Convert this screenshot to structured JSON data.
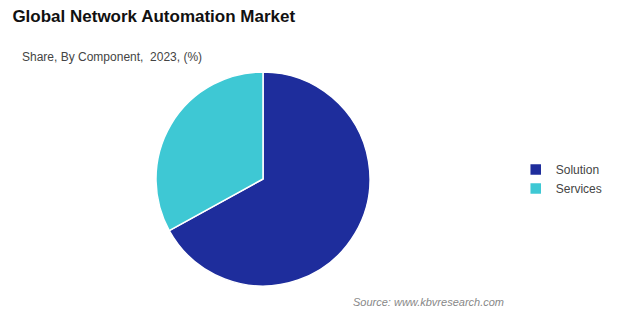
{
  "chart_data": {
    "type": "pie",
    "title": "Global Network Automation Market",
    "subtitle": "Share, By Component,  2023, (%)",
    "source_text": "Source: www.kbvresearch.com",
    "categories": [
      "Solution",
      "Services"
    ],
    "values": [
      67,
      33
    ],
    "colors": [
      "#1e2d9c",
      "#3ec8d4"
    ],
    "legend": "right"
  }
}
